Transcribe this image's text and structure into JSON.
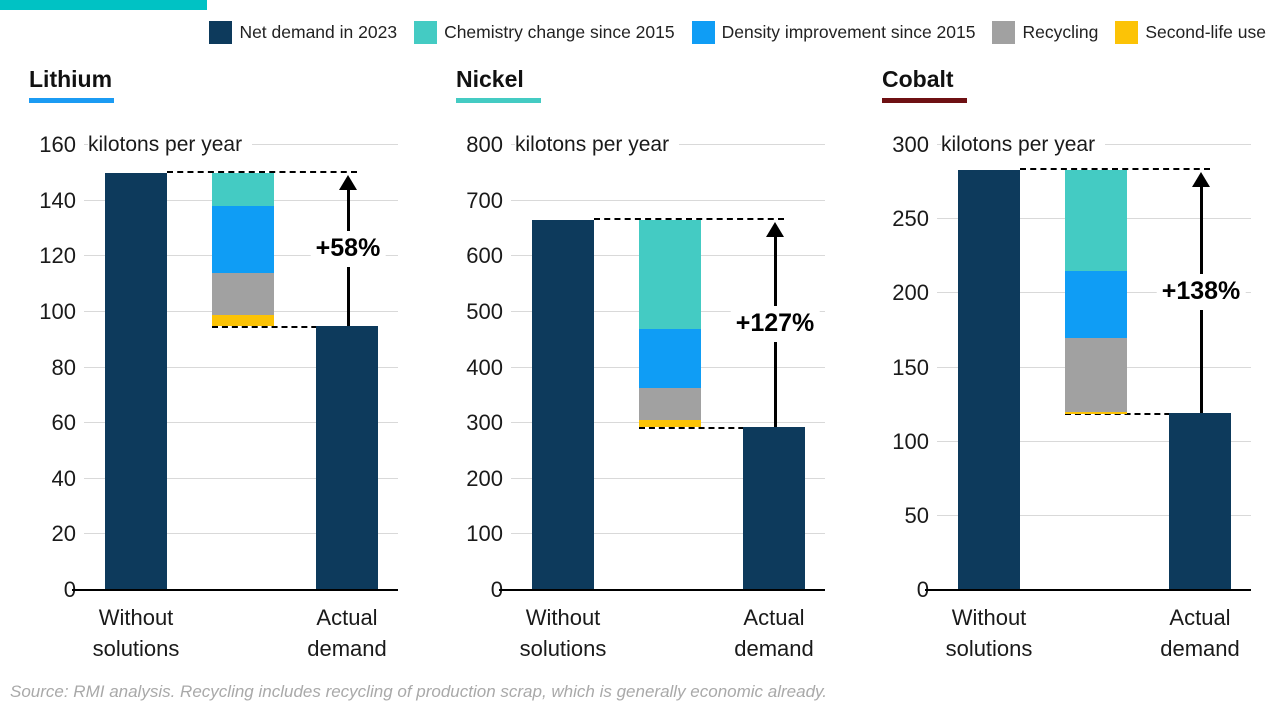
{
  "page": {
    "accent_bar_color": "#00c2c4",
    "source_note": "Source: RMI analysis. Recycling includes recycling of production scrap, which is generally economic already."
  },
  "legend": {
    "items": [
      {
        "label": "Net demand in 2023",
        "color": "#0d3a5c"
      },
      {
        "label": "Chemistry change since 2015",
        "color": "#44cbc3"
      },
      {
        "label": "Density improvement since 2015",
        "color": "#0f9df5"
      },
      {
        "label": "Recycling",
        "color": "#a1a1a1"
      },
      {
        "label": "Second-life use",
        "color": "#fcc306"
      }
    ]
  },
  "chart_data": [
    {
      "type": "bar",
      "subtype": "waterfall",
      "title": "Lithium",
      "accent_color": "#1b9bf3",
      "unit_label": "kilotons per year",
      "ylim": [
        0,
        160
      ],
      "tick_step": 20,
      "grid": true,
      "categories": [
        "Without solutions",
        "Actual demand"
      ],
      "bar_color": "#0d3a5c",
      "without_solutions": 150,
      "actual_demand": 95,
      "increase_label": "+58%",
      "reduction_segments": [
        {
          "name": "Chemistry change since 2015",
          "value": 12,
          "color": "#44cbc3"
        },
        {
          "name": "Density improvement since 2015",
          "value": 24,
          "color": "#0f9df5"
        },
        {
          "name": "Recycling",
          "value": 15,
          "color": "#a1a1a1"
        },
        {
          "name": "Second-life use",
          "value": 4,
          "color": "#fcc306"
        }
      ]
    },
    {
      "type": "bar",
      "subtype": "waterfall",
      "title": "Nickel",
      "accent_color": "#44cbc3",
      "unit_label": "kilotons per year",
      "ylim": [
        0,
        800
      ],
      "tick_step": 100,
      "grid": true,
      "categories": [
        "Without solutions",
        "Actual demand"
      ],
      "bar_color": "#0d3a5c",
      "without_solutions": 665,
      "actual_demand": 293,
      "increase_label": "+127%",
      "reduction_segments": [
        {
          "name": "Chemistry change since 2015",
          "value": 195,
          "color": "#44cbc3"
        },
        {
          "name": "Density improvement since 2015",
          "value": 107,
          "color": "#0f9df5"
        },
        {
          "name": "Recycling",
          "value": 57,
          "color": "#a1a1a1"
        },
        {
          "name": "Second-life use",
          "value": 13,
          "color": "#fcc306"
        }
      ]
    },
    {
      "type": "bar",
      "subtype": "waterfall",
      "title": "Cobalt",
      "accent_color": "#6e1013",
      "unit_label": "kilotons per year",
      "ylim": [
        0,
        300
      ],
      "tick_step": 50,
      "grid": true,
      "categories": [
        "Without solutions",
        "Actual demand"
      ],
      "bar_color": "#0d3a5c",
      "without_solutions": 283,
      "actual_demand": 119,
      "increase_label": "+138%",
      "reduction_segments": [
        {
          "name": "Chemistry change since 2015",
          "value": 68,
          "color": "#44cbc3"
        },
        {
          "name": "Density improvement since 2015",
          "value": 45,
          "color": "#0f9df5"
        },
        {
          "name": "Recycling",
          "value": 50,
          "color": "#a1a1a1"
        },
        {
          "name": "Second-life use",
          "value": 1,
          "color": "#fcc306"
        }
      ]
    }
  ]
}
